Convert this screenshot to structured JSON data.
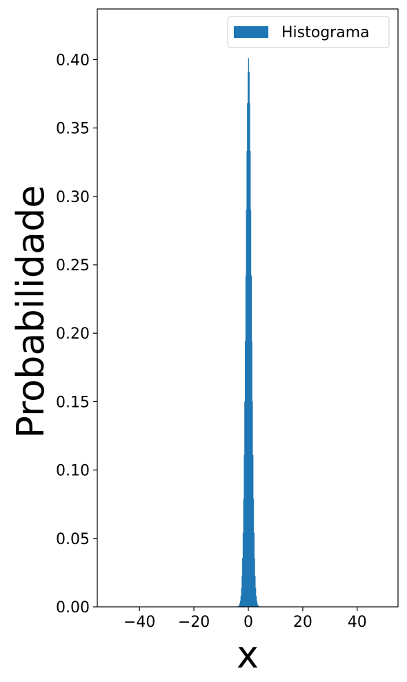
{
  "chart_data": {
    "type": "bar",
    "title": "",
    "xlabel": "x",
    "ylabel": "Probabilidade",
    "xlim": [
      -55.5,
      55.0
    ],
    "ylim": [
      0,
      0.437
    ],
    "x_ticks": [
      -40,
      -20,
      0,
      20,
      40
    ],
    "x_tick_labels": [
      "−40",
      "−20",
      "0",
      "20",
      "40"
    ],
    "y_ticks": [
      0.0,
      0.05,
      0.1,
      0.15,
      0.2,
      0.25,
      0.3,
      0.35,
      0.4
    ],
    "y_tick_labels": [
      "0.00",
      "0.05",
      "0.10",
      "0.15",
      "0.20",
      "0.25",
      "0.30",
      "0.35",
      "0.40"
    ],
    "grid": false,
    "legend_position": "top-right",
    "color": "#1f77b4",
    "series": [
      {
        "name": "Histograma",
        "bin_width": 0.2,
        "bins_x": [
          -4.0,
          -3.8,
          -3.6,
          -3.4,
          -3.2,
          -3.0,
          -2.8,
          -2.6,
          -2.4,
          -2.2,
          -2.0,
          -1.8,
          -1.6,
          -1.4,
          -1.2,
          -1.0,
          -0.8,
          -0.6,
          -0.4,
          -0.2,
          0.0,
          0.2,
          0.4,
          0.6,
          0.8,
          1.0,
          1.2,
          1.4,
          1.6,
          1.8,
          2.0,
          2.2,
          2.4,
          2.6,
          2.8,
          3.0,
          3.2,
          3.4,
          3.6,
          3.8
        ],
        "values": [
          0.0001,
          0.0003,
          0.0006,
          0.0012,
          0.0024,
          0.0044,
          0.0079,
          0.0136,
          0.0224,
          0.0355,
          0.054,
          0.079,
          0.111,
          0.15,
          0.194,
          0.242,
          0.29,
          0.333,
          0.368,
          0.391,
          0.401,
          0.391,
          0.368,
          0.333,
          0.29,
          0.242,
          0.194,
          0.15,
          0.111,
          0.079,
          0.054,
          0.0355,
          0.0224,
          0.0136,
          0.0079,
          0.0044,
          0.0024,
          0.0012,
          0.0006,
          0.0003
        ]
      }
    ]
  }
}
